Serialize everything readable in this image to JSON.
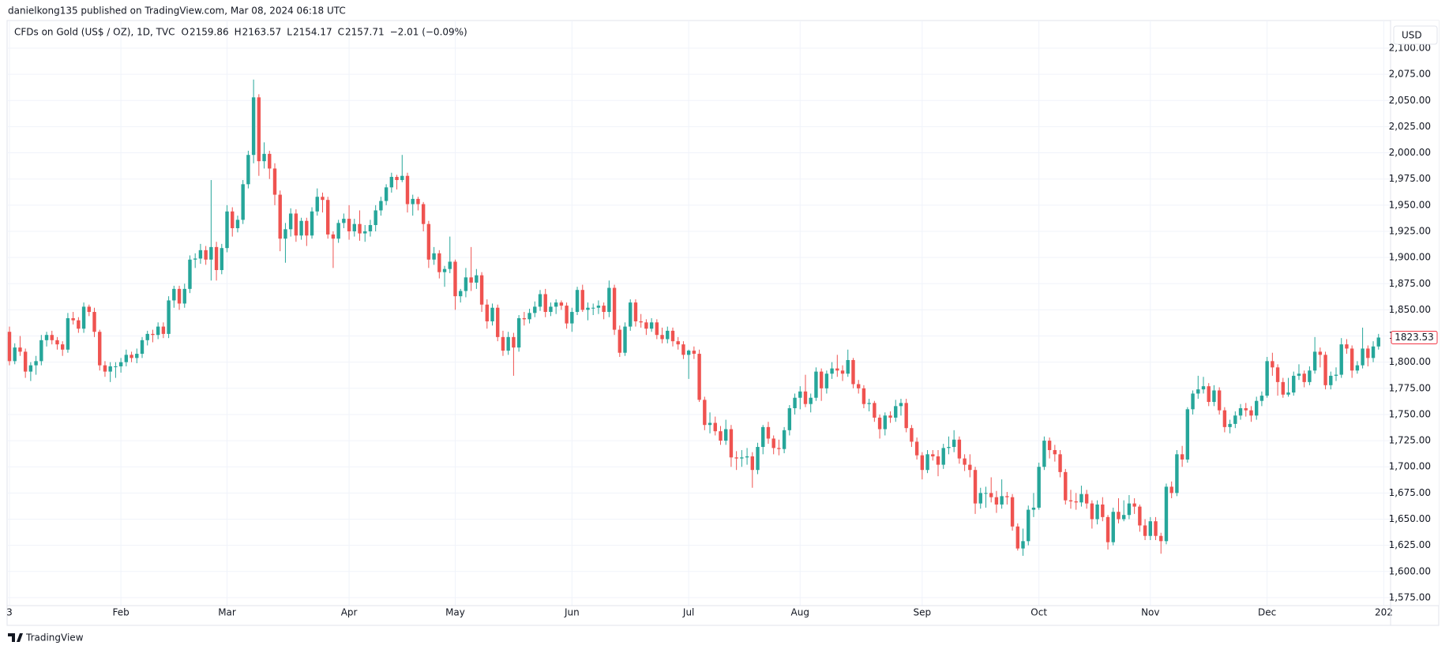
{
  "header": {
    "published": "danielkong135 published on TradingView.com, Mar 08, 2024 06:18 UTC",
    "symbol": "CFDs on Gold (US$ / OZ), 1D, TVC",
    "ohlc": [
      {
        "label": "O",
        "value": 2159.86
      },
      {
        "label": "H",
        "value": 2163.57
      },
      {
        "label": "L",
        "value": 2154.17
      },
      {
        "label": "C",
        "value": 2157.71
      }
    ],
    "change": "−2.01 (−0.09%)",
    "currency": "USD"
  },
  "chart_data": {
    "type": "candlestick",
    "up_color": "#26a69a",
    "down_color": "#ef5350",
    "last_price_color": "#f23645",
    "grid": true,
    "ylim": [
      1567.4,
      2126.4
    ],
    "yticks": [
      {
        "value": 1575,
        "label": "1,575.00"
      },
      {
        "value": 1600,
        "label": "1,600.00"
      },
      {
        "value": 1625,
        "label": "1,625.00"
      },
      {
        "value": 1650,
        "label": "1,650.00"
      },
      {
        "value": 1675,
        "label": "1,675.00"
      },
      {
        "value": 1700,
        "label": "1,700.00"
      },
      {
        "value": 1725,
        "label": "1,725.00"
      },
      {
        "value": 1750,
        "label": "1,750.00"
      },
      {
        "value": 1775,
        "label": "1,775.00"
      },
      {
        "value": 1800,
        "label": "1,800.00"
      },
      {
        "value": 1825,
        "label": "1,825.00"
      },
      {
        "value": 1850,
        "label": "1,850.00"
      },
      {
        "value": 1875,
        "label": "1,875.00"
      },
      {
        "value": 1900,
        "label": "1,900.00"
      },
      {
        "value": 1925,
        "label": "1,925.00"
      },
      {
        "value": 1950,
        "label": "1,950.00"
      },
      {
        "value": 1975,
        "label": "1,975.00"
      },
      {
        "value": 2000,
        "label": "2,000.00"
      },
      {
        "value": 2025,
        "label": "2,025.00"
      },
      {
        "value": 2050,
        "label": "2,050.00"
      },
      {
        "value": 2075,
        "label": "2,075.00"
      },
      {
        "value": 2100,
        "label": "2,100.00"
      }
    ],
    "xticks": [
      {
        "value": 0,
        "label": "3"
      },
      {
        "value": 21,
        "label": "Feb"
      },
      {
        "value": 41,
        "label": "Mar"
      },
      {
        "value": 64,
        "label": "Apr"
      },
      {
        "value": 84,
        "label": "May"
      },
      {
        "value": 106,
        "label": "Jun"
      },
      {
        "value": 128,
        "label": "Jul"
      },
      {
        "value": 149,
        "label": "Aug"
      },
      {
        "value": 172,
        "label": "Sep"
      },
      {
        "value": 194,
        "label": "Oct"
      },
      {
        "value": 215,
        "label": "Nov"
      },
      {
        "value": 237,
        "label": "Dec"
      },
      {
        "value": 259,
        "label": "202"
      }
    ],
    "open": [
      1829,
      1801,
      1814,
      1810,
      1791,
      1797,
      1801,
      1821,
      1826,
      1821,
      1817,
      1812,
      1842,
      1840,
      1832,
      1853,
      1848,
      1829,
      1797,
      1791,
      1796,
      1796,
      1800,
      1807,
      1804,
      1808,
      1821,
      1827,
      1826,
      1834,
      1827,
      1859,
      1870,
      1856,
      1870,
      1898,
      1899,
      1907,
      1898,
      1910,
      1888,
      1909,
      1944,
      1928,
      1936,
      1970,
      1998,
      2053,
      1992,
      1999,
      1985,
      1960,
      1918,
      1927,
      1942,
      1921,
      1935,
      1921,
      1944,
      1958,
      1955,
      1922,
      1918,
      1933,
      1937,
      1925,
      1932,
      1923,
      1925,
      1931,
      1945,
      1954,
      1967,
      1977,
      1974,
      1978,
      1951,
      1956,
      1951,
      1932,
      1898,
      1904,
      1886,
      1889,
      1896,
      1863,
      1868,
      1881,
      1876,
      1883,
      1855,
      1839,
      1852,
      1824,
      1811,
      1824,
      1814,
      1842,
      1841,
      1847,
      1853,
      1865,
      1848,
      1853,
      1857,
      1854,
      1837,
      1848,
      1869,
      1850,
      1852,
      1852,
      1854,
      1848,
      1871,
      1831,
      1809,
      1834,
      1857,
      1839,
      1838,
      1832,
      1838,
      1826,
      1822,
      1830,
      1820,
      1817,
      1807,
      1811,
      1808,
      1764,
      1740,
      1742,
      1734,
      1725,
      1736,
      1709,
      1708,
      1709,
      1710,
      1697,
      1719,
      1738,
      1727,
      1718,
      1717,
      1735,
      1756,
      1766,
      1772,
      1760,
      1766,
      1791,
      1775,
      1789,
      1794,
      1792,
      1789,
      1802,
      1779,
      1775,
      1760,
      1761,
      1747,
      1736,
      1749,
      1747,
      1758,
      1761,
      1737,
      1724,
      1711,
      1697,
      1712,
      1710,
      1702,
      1718,
      1719,
      1726,
      1708,
      1702,
      1697,
      1665,
      1675,
      1675,
      1671,
      1664,
      1672,
      1671,
      1643,
      1622,
      1629,
      1659,
      1661,
      1700,
      1725,
      1716,
      1712,
      1695,
      1668,
      1667,
      1666,
      1674,
      1665,
      1650,
      1664,
      1652,
      1628,
      1657,
      1650,
      1654,
      1665,
      1662,
      1644,
      1634,
      1648,
      1634,
      1629,
      1681,
      1675,
      1712,
      1707,
      1755,
      1770,
      1774,
      1777,
      1762,
      1773,
      1754,
      1738,
      1741,
      1749,
      1756,
      1754,
      1749,
      1763,
      1768,
      1801,
      1795,
      1781,
      1769,
      1771,
      1787,
      1789,
      1781,
      1792,
      1810,
      1807,
      1778,
      1787,
      1788,
      1817,
      1813,
      1792,
      1797,
      1813,
      1804,
      1815
    ],
    "high": [
      1834,
      1818,
      1825,
      1813,
      1800,
      1806,
      1826,
      1829,
      1830,
      1824,
      1820,
      1847,
      1848,
      1843,
      1857,
      1855,
      1852,
      1831,
      1801,
      1800,
      1800,
      1804,
      1812,
      1810,
      1813,
      1824,
      1830,
      1831,
      1838,
      1838,
      1863,
      1873,
      1873,
      1875,
      1902,
      1904,
      1913,
      1911,
      1974,
      1915,
      1913,
      1950,
      1948,
      1940,
      1974,
      2002,
      2070,
      2056,
      2010,
      2002,
      1990,
      1964,
      1933,
      1947,
      1946,
      1938,
      1938,
      1948,
      1966,
      1962,
      1958,
      1925,
      1936,
      1942,
      1950,
      1937,
      1945,
      1931,
      1936,
      1950,
      1958,
      1970,
      1981,
      1979,
      1998,
      1981,
      1960,
      1958,
      1953,
      1935,
      1910,
      1907,
      1892,
      1920,
      1898,
      1870,
      1890,
      1910,
      1889,
      1886,
      1860,
      1856,
      1855,
      1830,
      1829,
      1828,
      1845,
      1848,
      1851,
      1858,
      1869,
      1870,
      1857,
      1860,
      1859,
      1857,
      1852,
      1872,
      1874,
      1857,
      1856,
      1859,
      1857,
      1878,
      1874,
      1835,
      1838,
      1860,
      1860,
      1846,
      1841,
      1842,
      1841,
      1833,
      1834,
      1833,
      1824,
      1820,
      1812,
      1815,
      1812,
      1767,
      1752,
      1748,
      1739,
      1745,
      1740,
      1715,
      1716,
      1718,
      1714,
      1723,
      1740,
      1743,
      1730,
      1726,
      1738,
      1759,
      1770,
      1777,
      1788,
      1770,
      1795,
      1794,
      1792,
      1800,
      1807,
      1797,
      1812,
      1804,
      1783,
      1778,
      1765,
      1763,
      1750,
      1752,
      1753,
      1764,
      1765,
      1765,
      1740,
      1728,
      1714,
      1716,
      1716,
      1716,
      1722,
      1729,
      1735,
      1729,
      1712,
      1712,
      1700,
      1680,
      1681,
      1690,
      1677,
      1688,
      1676,
      1674,
      1646,
      1641,
      1663,
      1675,
      1704,
      1729,
      1728,
      1721,
      1716,
      1698,
      1678,
      1675,
      1682,
      1678,
      1668,
      1668,
      1671,
      1654,
      1661,
      1670,
      1668,
      1673,
      1670,
      1664,
      1650,
      1652,
      1652,
      1637,
      1684,
      1686,
      1716,
      1720,
      1757,
      1773,
      1787,
      1786,
      1780,
      1778,
      1776,
      1757,
      1745,
      1753,
      1760,
      1761,
      1758,
      1767,
      1772,
      1805,
      1809,
      1798,
      1785,
      1785,
      1791,
      1798,
      1792,
      1796,
      1824,
      1814,
      1810,
      1791,
      1795,
      1823,
      1822,
      1816,
      1801,
      1833,
      1816,
      1820,
      1827
    ],
    "low": [
      1797,
      1798,
      1806,
      1785,
      1782,
      1788,
      1797,
      1815,
      1817,
      1812,
      1806,
      1809,
      1836,
      1828,
      1828,
      1844,
      1824,
      1792,
      1786,
      1781,
      1785,
      1790,
      1796,
      1800,
      1799,
      1804,
      1816,
      1819,
      1822,
      1823,
      1823,
      1852,
      1850,
      1852,
      1866,
      1890,
      1894,
      1893,
      1878,
      1878,
      1884,
      1905,
      1920,
      1924,
      1932,
      1966,
      1990,
      1978,
      1985,
      1975,
      1950,
      1906,
      1895,
      1920,
      1915,
      1917,
      1911,
      1918,
      1940,
      1943,
      1918,
      1890,
      1914,
      1928,
      1917,
      1920,
      1916,
      1915,
      1920,
      1925,
      1940,
      1950,
      1962,
      1965,
      1972,
      1943,
      1940,
      1945,
      1925,
      1890,
      1893,
      1880,
      1872,
      1885,
      1850,
      1857,
      1862,
      1868,
      1870,
      1848,
      1832,
      1835,
      1820,
      1806,
      1807,
      1787,
      1810,
      1835,
      1837,
      1843,
      1849,
      1843,
      1844,
      1846,
      1850,
      1832,
      1829,
      1845,
      1848,
      1840,
      1845,
      1846,
      1841,
      1843,
      1826,
      1805,
      1806,
      1830,
      1834,
      1833,
      1826,
      1829,
      1822,
      1818,
      1818,
      1815,
      1812,
      1803,
      1784,
      1803,
      1762,
      1735,
      1732,
      1730,
      1721,
      1721,
      1700,
      1697,
      1700,
      1702,
      1680,
      1693,
      1712,
      1722,
      1712,
      1711,
      1713,
      1730,
      1750,
      1755,
      1757,
      1752,
      1763,
      1763,
      1770,
      1784,
      1786,
      1782,
      1786,
      1775,
      1770,
      1756,
      1753,
      1743,
      1727,
      1730,
      1742,
      1743,
      1749,
      1733,
      1719,
      1707,
      1688,
      1694,
      1706,
      1691,
      1698,
      1712,
      1714,
      1703,
      1696,
      1690,
      1655,
      1660,
      1661,
      1666,
      1656,
      1660,
      1664,
      1639,
      1620,
      1615,
      1625,
      1652,
      1659,
      1697,
      1708,
      1705,
      1690,
      1664,
      1660,
      1659,
      1662,
      1660,
      1641,
      1645,
      1648,
      1621,
      1625,
      1646,
      1648,
      1650,
      1655,
      1638,
      1630,
      1630,
      1630,
      1617,
      1626,
      1670,
      1672,
      1700,
      1704,
      1750,
      1765,
      1770,
      1758,
      1758,
      1750,
      1733,
      1732,
      1737,
      1745,
      1748,
      1743,
      1745,
      1758,
      1766,
      1787,
      1768,
      1766,
      1767,
      1768,
      1783,
      1776,
      1778,
      1789,
      1795,
      1774,
      1774,
      1782,
      1785,
      1808,
      1785,
      1789,
      1794,
      1796,
      1800,
      1812
    ],
    "close": [
      1801,
      1814,
      1810,
      1791,
      1797,
      1801,
      1821,
      1826,
      1821,
      1817,
      1812,
      1842,
      1840,
      1832,
      1853,
      1848,
      1829,
      1797,
      1791,
      1796,
      1796,
      1800,
      1807,
      1804,
      1808,
      1821,
      1827,
      1826,
      1834,
      1827,
      1859,
      1870,
      1856,
      1870,
      1898,
      1899,
      1907,
      1898,
      1910,
      1888,
      1909,
      1944,
      1928,
      1936,
      1970,
      1998,
      2053,
      1992,
      1999,
      1985,
      1960,
      1918,
      1927,
      1942,
      1921,
      1935,
      1921,
      1944,
      1958,
      1955,
      1922,
      1918,
      1933,
      1937,
      1925,
      1932,
      1923,
      1925,
      1931,
      1945,
      1954,
      1967,
      1977,
      1974,
      1978,
      1951,
      1956,
      1951,
      1932,
      1898,
      1904,
      1886,
      1889,
      1896,
      1863,
      1868,
      1881,
      1876,
      1883,
      1855,
      1839,
      1852,
      1824,
      1811,
      1824,
      1814,
      1842,
      1841,
      1847,
      1853,
      1865,
      1848,
      1853,
      1857,
      1854,
      1837,
      1848,
      1869,
      1850,
      1852,
      1852,
      1854,
      1848,
      1871,
      1831,
      1809,
      1834,
      1857,
      1839,
      1838,
      1832,
      1838,
      1826,
      1822,
      1830,
      1820,
      1817,
      1807,
      1811,
      1808,
      1764,
      1740,
      1742,
      1734,
      1725,
      1736,
      1709,
      1708,
      1709,
      1710,
      1697,
      1719,
      1738,
      1727,
      1718,
      1717,
      1735,
      1756,
      1766,
      1772,
      1760,
      1766,
      1791,
      1775,
      1789,
      1794,
      1792,
      1789,
      1802,
      1779,
      1775,
      1760,
      1761,
      1747,
      1736,
      1749,
      1747,
      1758,
      1761,
      1737,
      1724,
      1711,
      1697,
      1712,
      1710,
      1702,
      1718,
      1719,
      1726,
      1708,
      1702,
      1697,
      1665,
      1675,
      1675,
      1671,
      1664,
      1672,
      1671,
      1643,
      1622,
      1629,
      1659,
      1661,
      1700,
      1725,
      1716,
      1712,
      1695,
      1668,
      1667,
      1666,
      1674,
      1665,
      1650,
      1664,
      1652,
      1628,
      1657,
      1650,
      1654,
      1665,
      1662,
      1644,
      1634,
      1648,
      1634,
      1629,
      1681,
      1675,
      1712,
      1707,
      1755,
      1770,
      1774,
      1777,
      1762,
      1773,
      1754,
      1738,
      1741,
      1749,
      1756,
      1754,
      1749,
      1763,
      1768,
      1801,
      1795,
      1781,
      1769,
      1771,
      1787,
      1789,
      1781,
      1792,
      1810,
      1807,
      1778,
      1787,
      1788,
      1817,
      1813,
      1792,
      1797,
      1813,
      1804,
      1815,
      1823.53
    ]
  },
  "footer": {
    "brand": "TradingView"
  }
}
